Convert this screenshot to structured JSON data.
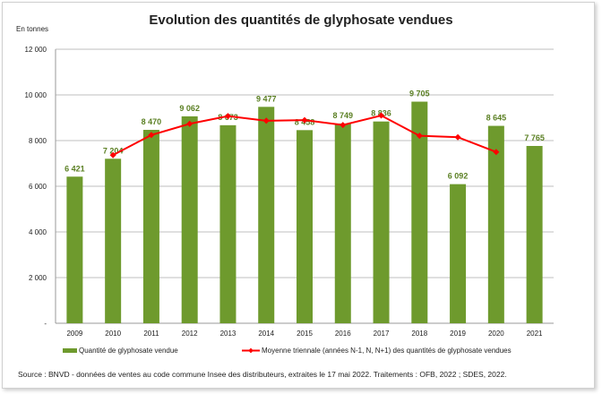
{
  "chart_data": {
    "type": "bar",
    "title": "Evolution des quantités de glyphosate vendues",
    "ylabel": "En tonnes",
    "xlabel": "",
    "ylim": [
      0,
      12000
    ],
    "yticks": [
      0,
      2000,
      4000,
      6000,
      8000,
      10000,
      12000
    ],
    "ytick_labels": [
      "-",
      "2 000",
      "4 000",
      "6 000",
      "8 000",
      "10 000",
      "12 000"
    ],
    "grid": true,
    "legend_position": "bottom",
    "categories": [
      "2009",
      "2010",
      "2011",
      "2012",
      "2013",
      "2014",
      "2015",
      "2016",
      "2017",
      "2018",
      "2019",
      "2020",
      "2021"
    ],
    "series": [
      {
        "name": "Quantité de glyphosate vendue",
        "type": "bar",
        "color": "#6e9a2d",
        "values": [
          6421,
          7204,
          8470,
          9062,
          8673,
          9477,
          8458,
          8749,
          8836,
          9705,
          6092,
          8645,
          7765
        ],
        "labels": [
          "6 421",
          "7 204",
          "8 470",
          "9 062",
          "8 673",
          "9 477",
          "8 458",
          "8 749",
          "8 836",
          "9 705",
          "6 092",
          "8 645",
          "7 765"
        ]
      },
      {
        "name": "Moyenne triennale (années N-1, N, N+1) des quantités de glyphosate vendues",
        "type": "line",
        "color": "#ff0000",
        "values": [
          null,
          7365,
          8245,
          8735,
          9071,
          8869,
          8895,
          8681,
          9097,
          8211,
          8147,
          7501,
          null
        ]
      }
    ]
  },
  "source": "Source : BNVD - données de ventes au code commune Insee des distributeurs, extraites le 17 mai 2022. Traitements : OFB, 2022 ; SDES, 2022."
}
